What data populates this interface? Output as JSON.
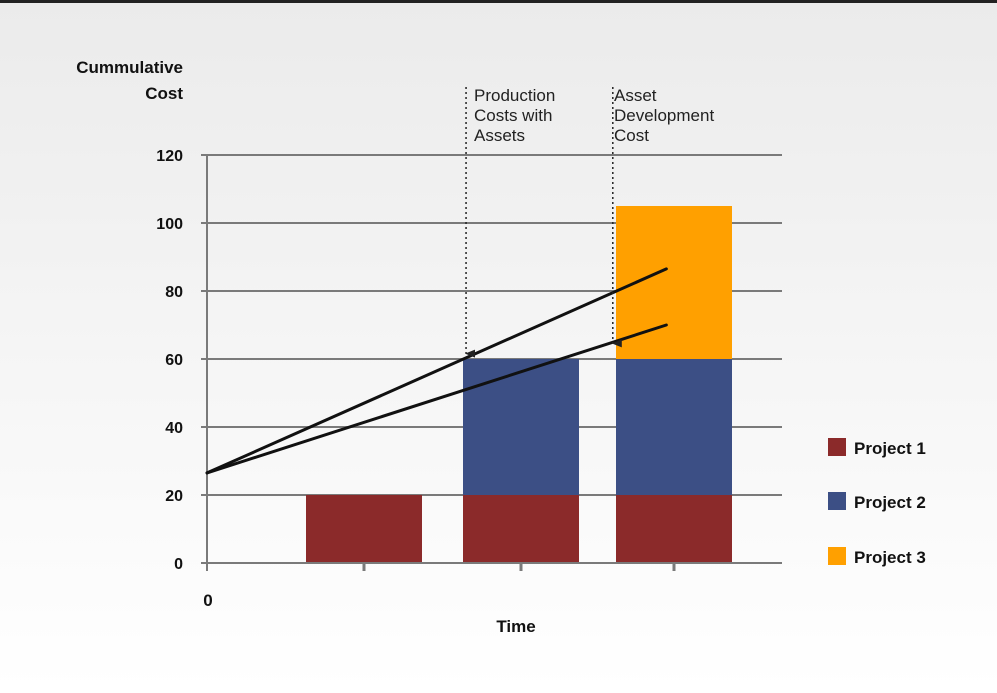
{
  "chart_data": {
    "type": "bar",
    "stacked": true,
    "title": "",
    "ylabel": [
      "Cummulative",
      "Cost"
    ],
    "xlabel": "Time",
    "x_origin_label": "0",
    "ylim": [
      0,
      120
    ],
    "yticks": [
      0,
      20,
      40,
      60,
      80,
      100,
      120
    ],
    "grid": true,
    "legend_position": "right",
    "categories": [
      "",
      "",
      ""
    ],
    "series": [
      {
        "name": "Project 1",
        "color": "#8b2a2a",
        "values": [
          20,
          20,
          20
        ]
      },
      {
        "name": "Project 2",
        "color": "#3c4f85",
        "values": [
          0,
          40,
          40
        ]
      },
      {
        "name": "Project 3",
        "color": "#ffa000",
        "values": [
          0,
          0,
          45
        ]
      }
    ],
    "trend_lines": [
      {
        "from": [
          0,
          26.5
        ],
        "to": [
          2.95,
          86.5
        ]
      },
      {
        "from": [
          0,
          26.5
        ],
        "to": [
          2.95,
          70
        ]
      }
    ],
    "annotations": [
      {
        "lines": [
          "Production",
          "Costs with",
          "Assets"
        ],
        "x": 1.65,
        "arrow_to_y": 61
      },
      {
        "lines": [
          "Asset",
          "Development",
          "Cost"
        ],
        "x": 2.6,
        "arrow_to_y": 64
      }
    ]
  }
}
